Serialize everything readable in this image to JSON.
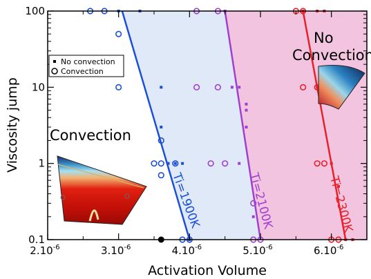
{
  "chart_data": {
    "type": "scatter",
    "title": "",
    "xlabel": "Activation Volume",
    "ylabel": "Viscosity jump",
    "xlim": [
      2e-06,
      6.5e-06
    ],
    "ylim": [
      0.1,
      100
    ],
    "yscale": "log",
    "grid": false,
    "x_ticks": [
      {
        "value": 2e-06,
        "mantissa": "2.10",
        "exp": "-6"
      },
      {
        "value": 3e-06,
        "mantissa": "3.10",
        "exp": "-6"
      },
      {
        "value": 4e-06,
        "mantissa": "4.10",
        "exp": "-6"
      },
      {
        "value": 5e-06,
        "mantissa": "5.10",
        "exp": "-6"
      },
      {
        "value": 6e-06,
        "mantissa": "6.10",
        "exp": "-6"
      }
    ],
    "y_ticks": [
      {
        "value": 0.1,
        "label": "0.1"
      },
      {
        "value": 1,
        "label": "1"
      },
      {
        "value": 10,
        "label": "10"
      },
      {
        "value": 100,
        "label": "100"
      }
    ],
    "legend": {
      "placement": "upper-left",
      "items": [
        {
          "marker": "square",
          "label": "No convection"
        },
        {
          "marker": "circle",
          "label": "Convection"
        }
      ]
    },
    "region_labels": {
      "convection": "Convection",
      "no_convection_line1": "No",
      "no_convection_line2": "Convection"
    },
    "series": [
      {
        "name": "Ti=1900K",
        "color": "#1a4fd6",
        "shade": "#dfe9f7",
        "boundary": {
          "top_x": 3.05e-06,
          "bottom_x": 4e-06
        },
        "convection": [
          [
            2.6e-06,
            100
          ],
          [
            2.8e-06,
            100
          ],
          [
            3e-06,
            50
          ],
          [
            3e-06,
            10
          ],
          [
            3.5e-06,
            1
          ],
          [
            3.6e-06,
            2
          ],
          [
            3.6e-06,
            1
          ],
          [
            3.6e-06,
            0.7
          ],
          [
            3.8e-06,
            1
          ],
          [
            3.9e-06,
            0.1
          ],
          [
            4e-06,
            0.1
          ]
        ],
        "no_convection": [
          [
            3e-06,
            100
          ],
          [
            3.3e-06,
            100
          ],
          [
            3.6e-06,
            10
          ],
          [
            3.6e-06,
            3
          ],
          [
            3.7e-06,
            1
          ],
          [
            3.8e-06,
            1
          ],
          [
            3.9e-06,
            1
          ],
          [
            4e-06,
            0.1
          ]
        ]
      },
      {
        "name": "Ti=2100K",
        "color": "#a040d0",
        "shade": "#e4ddf7",
        "boundary": {
          "top_x": 4.5e-06,
          "bottom_x": 5e-06
        },
        "convection": [
          [
            4.1e-06,
            100
          ],
          [
            4.4e-06,
            100
          ],
          [
            4.1e-06,
            10
          ],
          [
            4.4e-06,
            10
          ],
          [
            4.3e-06,
            1
          ],
          [
            4.5e-06,
            1
          ],
          [
            4.9e-06,
            0.3
          ],
          [
            4.9e-06,
            0.1
          ],
          [
            5e-06,
            0.1
          ]
        ],
        "no_convection": [
          [
            4.5e-06,
            100
          ],
          [
            4.6e-06,
            10
          ],
          [
            4.7e-06,
            10
          ],
          [
            4.8e-06,
            5
          ],
          [
            4.8e-06,
            6
          ],
          [
            4.7e-06,
            1
          ],
          [
            4.9e-06,
            0.2
          ],
          [
            4.8e-06,
            3
          ]
        ]
      },
      {
        "name": "Ti=2300K",
        "color": "#e8202a",
        "shade": "#f2c4df",
        "boundary": {
          "top_x": 5.6e-06,
          "bottom_x": 6.2e-06
        },
        "convection": [
          [
            5.5e-06,
            100
          ],
          [
            5.6e-06,
            100
          ],
          [
            5.6e-06,
            10
          ],
          [
            5.8e-06,
            10
          ],
          [
            5.8e-06,
            1
          ],
          [
            5.9e-06,
            1
          ],
          [
            6e-06,
            0.1
          ],
          [
            6.1e-06,
            0.1
          ]
        ],
        "no_convection": [
          [
            5.6e-06,
            100
          ],
          [
            5.8e-06,
            100
          ],
          [
            5.9e-06,
            100
          ],
          [
            5.8e-06,
            10
          ],
          [
            6e-06,
            1
          ],
          [
            6.1e-06,
            0.5
          ],
          [
            6.2e-06,
            0.1
          ],
          [
            6.3e-06,
            0.1
          ]
        ]
      }
    ],
    "extra_points": [
      [
        3.6e-06,
        0.1
      ]
    ]
  }
}
